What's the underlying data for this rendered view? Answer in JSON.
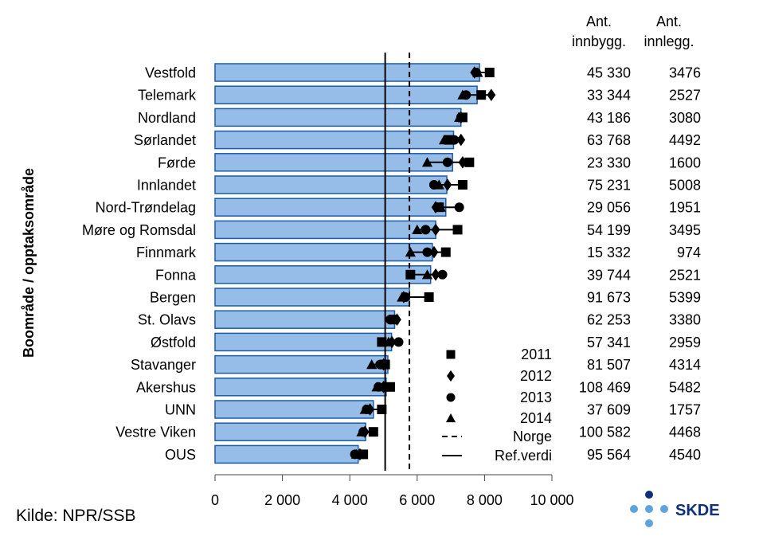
{
  "source_label": "Kilde: NPR/SSB",
  "logo_text": "SKDE",
  "chart_data": {
    "type": "bar",
    "orientation": "horizontal",
    "ylabel": "Boområde / opptaksområde",
    "xlim": [
      0,
      10000
    ],
    "x_ticks": [
      0,
      2000,
      4000,
      6000,
      8000,
      10000
    ],
    "x_tick_labels": [
      "0",
      "2 000",
      "4 000",
      "6 000",
      "8 000",
      "10 000"
    ],
    "col_headers": [
      {
        "line1": "Ant.",
        "line2": "innbygg."
      },
      {
        "line1": "Ant.",
        "line2": "innlegg."
      }
    ],
    "categories": [
      "Vestfold",
      "Telemark",
      "Nordland",
      "Sørlandet",
      "Førde",
      "Innlandet",
      "Nord-Trøndelag",
      "Møre og Romsdal",
      "Finnmark",
      "Fonna",
      "Bergen",
      "St. Olavs",
      "Østfold",
      "Stavanger",
      "Akershus",
      "UNN",
      "Vestre Viken",
      "OUS"
    ],
    "values": [
      7850,
      7780,
      7300,
      7080,
      7050,
      6880,
      6850,
      6550,
      6450,
      6400,
      5770,
      5330,
      5240,
      5130,
      5080,
      4700,
      4470,
      4250
    ],
    "bar_color": "#95bde8",
    "bar_edge_color": "#1c5ba8",
    "series": [
      {
        "name": "2011",
        "marker": "square",
        "values": [
          8150,
          7900,
          7350,
          6950,
          7550,
          7350,
          6650,
          7200,
          6850,
          5800,
          6350,
          5300,
          4950,
          5050,
          5200,
          4950,
          4700,
          4400
        ]
      },
      {
        "name": "2012",
        "marker": "diamond",
        "values": [
          7700,
          8200,
          7300,
          7300,
          7350,
          6900,
          6550,
          6550,
          6500,
          6550,
          5600,
          5400,
          5250,
          5000,
          5000,
          4600,
          4450,
          4300
        ]
      },
      {
        "name": "2013",
        "marker": "circle",
        "values": [
          7750,
          7450,
          7300,
          7100,
          6900,
          6500,
          7250,
          6250,
          6300,
          6750,
          5650,
          5200,
          5450,
          4900,
          4850,
          4500,
          4400,
          4150
        ]
      },
      {
        "name": "2014",
        "marker": "triangle",
        "values": [
          7800,
          7350,
          7250,
          6800,
          6300,
          6650,
          6700,
          6000,
          5800,
          6300,
          5550,
          5300,
          5150,
          4650,
          4800,
          4450,
          4350,
          4200
        ]
      }
    ],
    "reference_lines": [
      {
        "name": "Norge",
        "style": "dashed",
        "value": 5770
      },
      {
        "name": "Ref.verdi",
        "style": "solid",
        "value": 5050
      }
    ],
    "inhabitants": [
      "45 330",
      "33 344",
      "43 186",
      "63 768",
      "23 330",
      "75 231",
      "29 056",
      "54 199",
      "15 332",
      "39 744",
      "91 673",
      "62 253",
      "57 341",
      "81 507",
      "108 469",
      "37 609",
      "100 582",
      "95 564"
    ],
    "admissions": [
      "3476",
      "2527",
      "3080",
      "4492",
      "1600",
      "5008",
      "1951",
      "3495",
      "974",
      "2521",
      "5399",
      "3380",
      "2959",
      "4314",
      "5482",
      "1757",
      "4468",
      "4540"
    ],
    "legend_position": "inside-bottom-right"
  }
}
